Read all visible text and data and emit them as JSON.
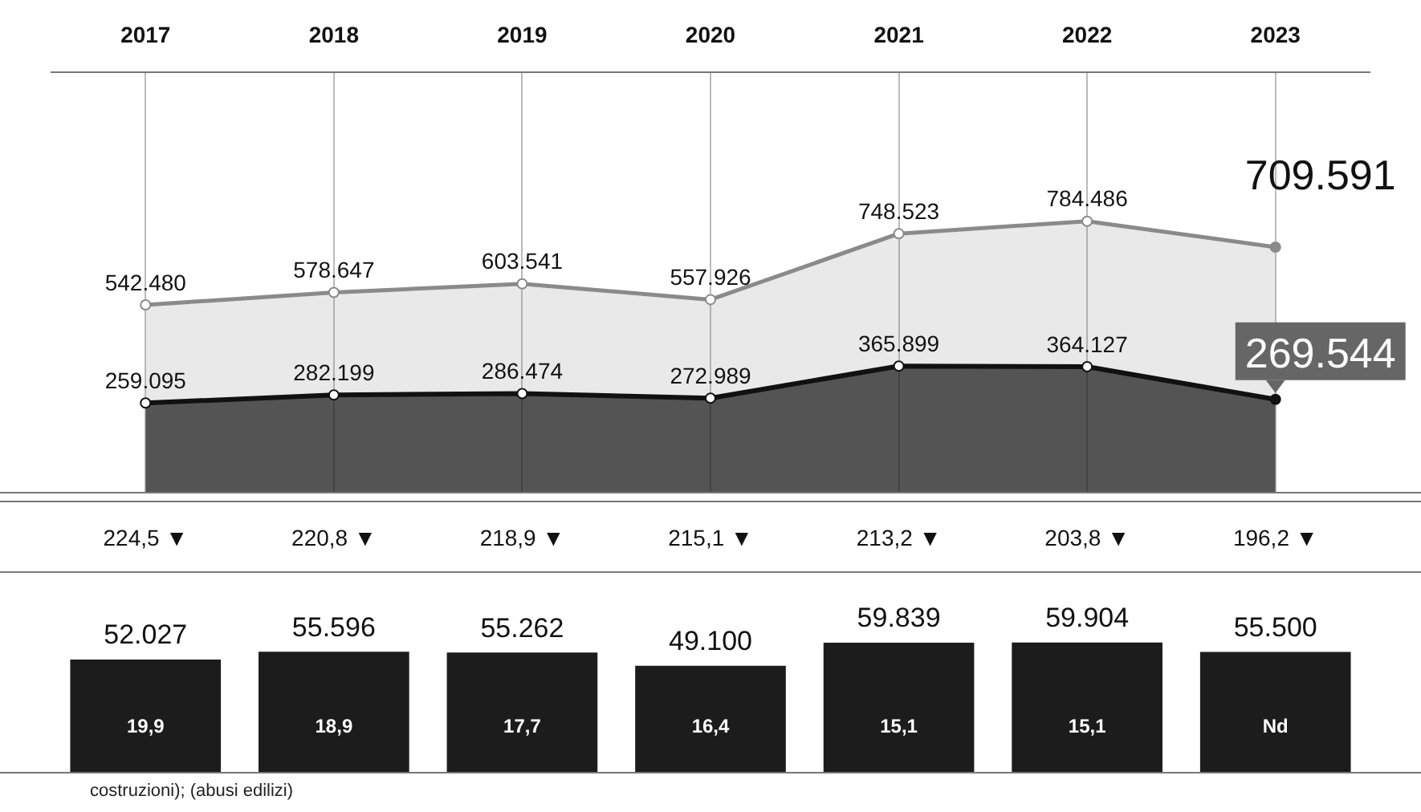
{
  "chart_data": [
    {
      "type": "area",
      "categories": [
        "2017",
        "2018",
        "2019",
        "2020",
        "2021",
        "2022",
        "2023"
      ],
      "tick_labels": "x",
      "grid": "x",
      "marker": "circle",
      "series": [
        {
          "color": "#8a8a8a",
          "values": [
            542480,
            578647,
            603541,
            557926,
            748523,
            784486,
            709591
          ],
          "value_labels": [
            "542.480",
            "578.647",
            "603.541",
            "557.926",
            "748.523",
            "784.486",
            "709.591"
          ]
        },
        {
          "color": "#111111",
          "values": [
            259095,
            282199,
            286474,
            272989,
            365899,
            364127,
            269544
          ],
          "value_labels": [
            "259.095",
            "282.199",
            "286.474",
            "272.989",
            "365.899",
            "364.127",
            "269.544"
          ]
        }
      ]
    },
    {
      "type": "other",
      "annotations": [
        "224,5 ▼",
        "220,8 ▼",
        "218,9 ▼",
        "215,1 ▼",
        "213,2 ▼",
        "203,8 ▼",
        "196,2 ▼"
      ]
    },
    {
      "type": "bar",
      "categories": [
        null,
        null,
        null,
        null,
        null,
        null,
        null
      ],
      "tick_labels": false,
      "color": "#1c1c1c",
      "values": [
        52027,
        55596,
        55262,
        49100,
        59839,
        59904,
        55500
      ],
      "value_labels": [
        "52.027",
        "55.596",
        "55.262",
        "49.100",
        "59.839",
        "59.904",
        "55.500"
      ],
      "annotations": [
        "19,9",
        "18,9",
        "17,7",
        "16,4",
        "15,1",
        "15,1",
        "Nd",
        "costruzioni); (abusi edilizi)"
      ]
    }
  ]
}
